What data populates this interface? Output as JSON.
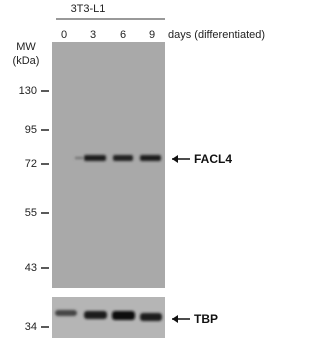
{
  "header": {
    "cell_line": "3T3-L1",
    "lanes": [
      "0",
      "3",
      "6",
      "9"
    ],
    "lane_caption": "days (differentiated)"
  },
  "mw": {
    "title": "MW",
    "unit": "(kDa)",
    "markers": [
      "130",
      "95",
      "72",
      "55",
      "43",
      "34"
    ]
  },
  "bands": {
    "main": "FACL4",
    "loading": "TBP"
  }
}
